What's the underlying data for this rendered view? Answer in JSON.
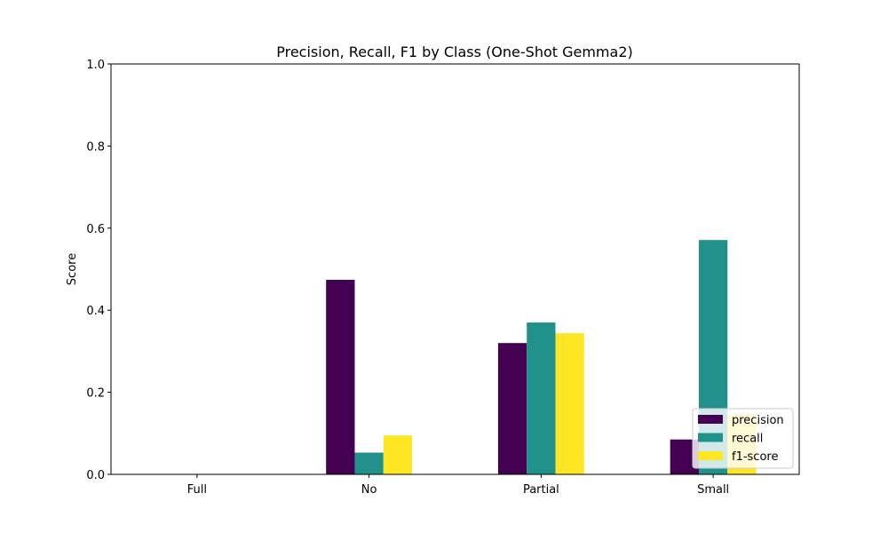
{
  "chart_data": {
    "type": "bar",
    "title": "Precision, Recall, F1 by Class (One-Shot Gemma2)",
    "xlabel": "",
    "ylabel": "Score",
    "ylim": [
      0,
      1
    ],
    "yticks": [
      "0.0",
      "0.2",
      "0.4",
      "0.6",
      "0.8",
      "1.0"
    ],
    "ytick_values": [
      0,
      0.2,
      0.4,
      0.6,
      0.8,
      1.0
    ],
    "categories": [
      "Full",
      "No",
      "Partial",
      "Small"
    ],
    "series": [
      {
        "name": "precision",
        "color": "#440154",
        "values": [
          0.0,
          0.474,
          0.32,
          0.085
        ]
      },
      {
        "name": "recall",
        "color": "#21918c",
        "values": [
          0.0,
          0.053,
          0.37,
          0.571
        ]
      },
      {
        "name": "f1-score",
        "color": "#fde725",
        "values": [
          0.0,
          0.095,
          0.344,
          0.145
        ]
      }
    ],
    "grid": false,
    "legend_position": "lower-right"
  }
}
